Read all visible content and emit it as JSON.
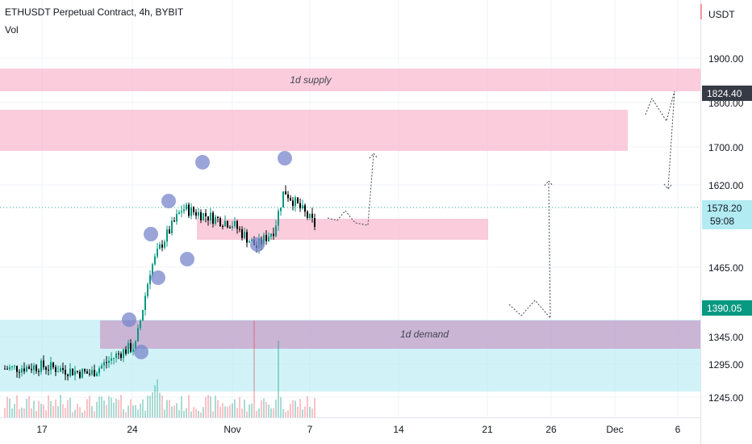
{
  "header": {
    "title": "ETHUSDT Perpetual Contract, 4h, BYBIT",
    "indicator": "Vol"
  },
  "price_axis": {
    "currency": "USDT",
    "ticks": [
      "1900.00",
      "1800.00",
      "1700.00",
      "1620.00",
      "1465.00",
      "1345.00",
      "1295.00",
      "1245.00"
    ]
  },
  "time_axis": {
    "ticks": [
      "17",
      "24",
      "Nov",
      "7",
      "14",
      "21",
      "26",
      "Dec",
      "6"
    ]
  },
  "badges": {
    "price_1824": "1824.40",
    "price_1578": "1578.20",
    "countdown": "59:08",
    "price_1390": "1390.05"
  },
  "zones": {
    "supply_label": "1d supply",
    "demand_label": "1d demand"
  },
  "colors": {
    "supply_zone": "#f8bbd0",
    "demand_zone": "#b2ebf2",
    "overlap_zone": "#c9a9cf",
    "marker": "#7986cb",
    "candle_up": "#089981",
    "candle_down": "#000000",
    "badge_grey": "#363a45",
    "badge_teal": "#089981",
    "badge_lightblue": "#b2ebf2"
  },
  "chart_data": {
    "type": "candlestick",
    "instrument": "ETHUSDT Perpetual Contract",
    "timeframe": "4h",
    "exchange": "BYBIT",
    "y_unit": "USDT",
    "approx_close_path": [
      {
        "x": "Oct 13",
        "y": 1300
      },
      {
        "x": "Oct 17",
        "y": 1305
      },
      {
        "x": "Oct 20",
        "y": 1290
      },
      {
        "x": "Oct 23",
        "y": 1330
      },
      {
        "x": "Oct 25",
        "y": 1345
      },
      {
        "x": "Oct 26",
        "y": 1490
      },
      {
        "x": "Oct 27",
        "y": 1540
      },
      {
        "x": "Oct 29",
        "y": 1610
      },
      {
        "x": "Nov 1",
        "y": 1580
      },
      {
        "x": "Nov 3",
        "y": 1535
      },
      {
        "x": "Nov 4",
        "y": 1570
      },
      {
        "x": "Nov 5",
        "y": 1645
      },
      {
        "x": "Nov 7",
        "y": 1578
      }
    ]
  }
}
